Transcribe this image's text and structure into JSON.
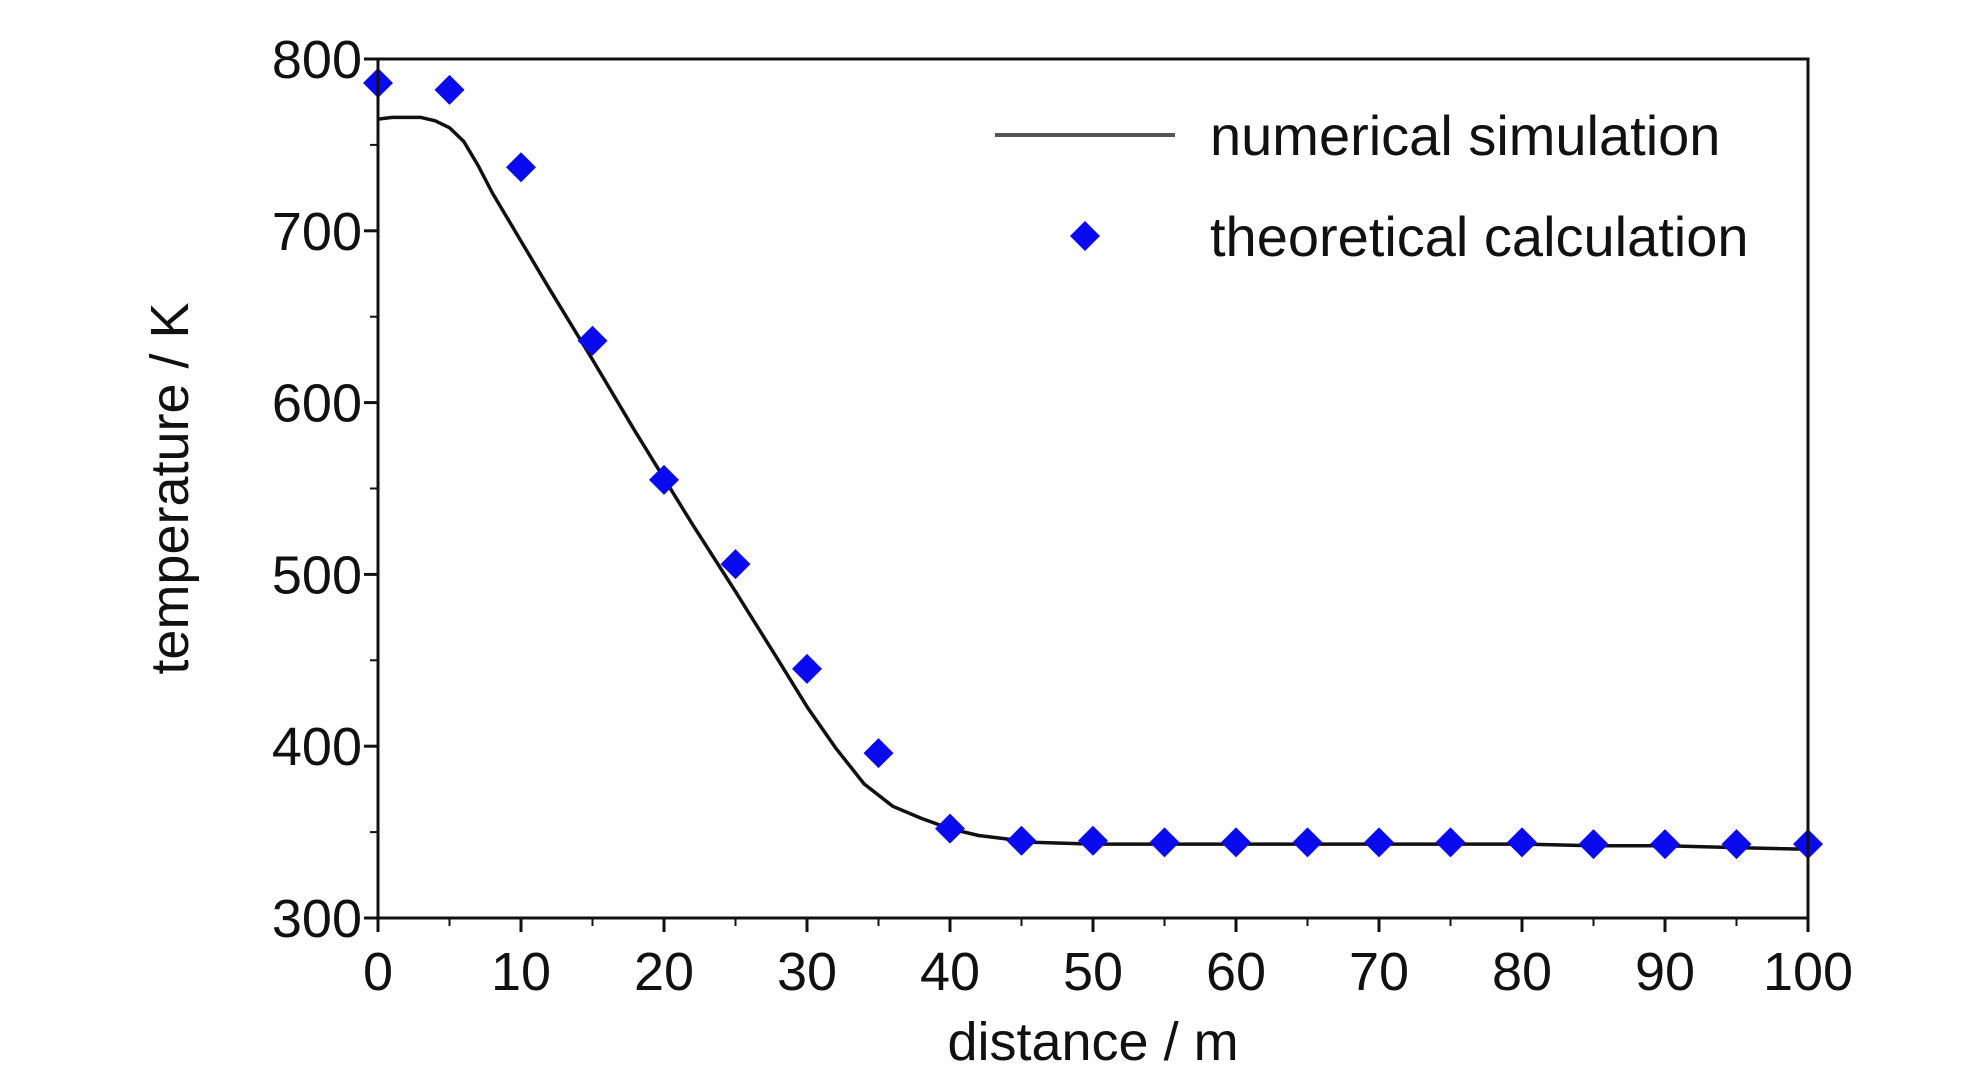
{
  "chart_data": {
    "type": "line",
    "xlabel": "distance / m",
    "ylabel": "temperature / K",
    "xlim": [
      0,
      100
    ],
    "ylim": [
      300,
      800
    ],
    "xticks": [
      0,
      10,
      20,
      30,
      40,
      50,
      60,
      70,
      80,
      90,
      100
    ],
    "yticks": [
      300,
      400,
      500,
      600,
      700,
      800
    ],
    "legend_position": "top-right",
    "series": [
      {
        "name": "numerical simulation",
        "mark": "line",
        "color": "#111111",
        "x": [
          0,
          1,
          2,
          3,
          4,
          5,
          6,
          7,
          8,
          10,
          12,
          15,
          18,
          20,
          22,
          25,
          28,
          30,
          32,
          34,
          36,
          38,
          40,
          42,
          44,
          46,
          50,
          55,
          60,
          65,
          70,
          75,
          80,
          85,
          90,
          95,
          100
        ],
        "y": [
          765,
          766,
          766,
          766,
          764,
          760,
          752,
          738,
          722,
          694,
          666,
          625,
          583,
          556,
          529,
          490,
          450,
          423,
          399,
          378,
          365,
          358,
          352,
          348,
          346,
          344,
          343,
          343,
          343,
          343,
          343,
          343,
          343,
          342,
          342,
          341,
          340
        ]
      },
      {
        "name": "theoretical calculation",
        "mark": "diamond",
        "color": "#0a0aee",
        "x": [
          0,
          5,
          10,
          15,
          20,
          25,
          30,
          35,
          40,
          45,
          50,
          55,
          60,
          65,
          70,
          75,
          80,
          85,
          90,
          95,
          100
        ],
        "y": [
          786,
          782,
          737,
          636,
          555,
          506,
          445,
          396,
          352,
          345,
          345,
          344,
          344,
          344,
          344,
          344,
          344,
          343,
          343,
          343,
          343
        ]
      }
    ]
  }
}
